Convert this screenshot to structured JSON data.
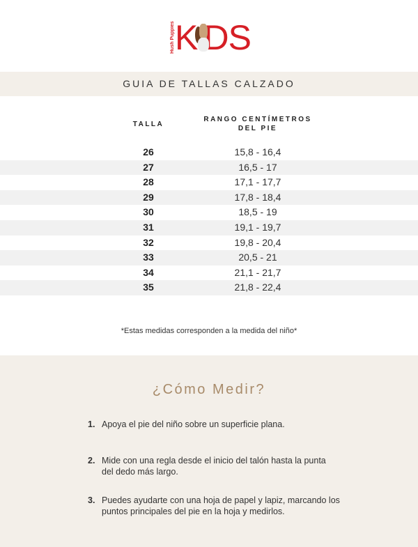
{
  "logo": {
    "brand": "Hush Puppies",
    "text_k": "K",
    "text_ds": "DS",
    "colors": {
      "brand": "#d61f26"
    }
  },
  "title": "GUIA DE TALLAS CALZADO",
  "table": {
    "headers": {
      "size": "TALLA",
      "range_line1": "RANGO CENTÍMETROS",
      "range_line2": "DEL PIE"
    },
    "rows": [
      {
        "size": "26",
        "range": "15,8 - 16,4"
      },
      {
        "size": "27",
        "range": "16,5 - 17"
      },
      {
        "size": "28",
        "range": "17,1 -  17,7"
      },
      {
        "size": "29",
        "range": "17,8 - 18,4"
      },
      {
        "size": "30",
        "range": "18,5 - 19"
      },
      {
        "size": "31",
        "range": "19,1 - 19,7"
      },
      {
        "size": "32",
        "range": "19,8 - 20,4"
      },
      {
        "size": "33",
        "range": "20,5 - 21"
      },
      {
        "size": "34",
        "range": "21,1 - 21,7"
      },
      {
        "size": "35",
        "range": "21,8 - 22,4"
      }
    ]
  },
  "note": "*Estas medidas corresponden a la medida del niño*",
  "how_to": {
    "title": "¿Cómo Medir?",
    "steps": [
      {
        "num": "1.",
        "text": "Apoya el pie del niño sobre un superficie plana."
      },
      {
        "num": "2.",
        "text": "Mide con una regla desde el inicio del talón hasta la punta del dedo más largo."
      },
      {
        "num": "3.",
        "text": "Puedes ayudarte con una hoja de papel y lapiz, marcando los puntos principales del pie en la hoja y medirlos."
      }
    ]
  }
}
